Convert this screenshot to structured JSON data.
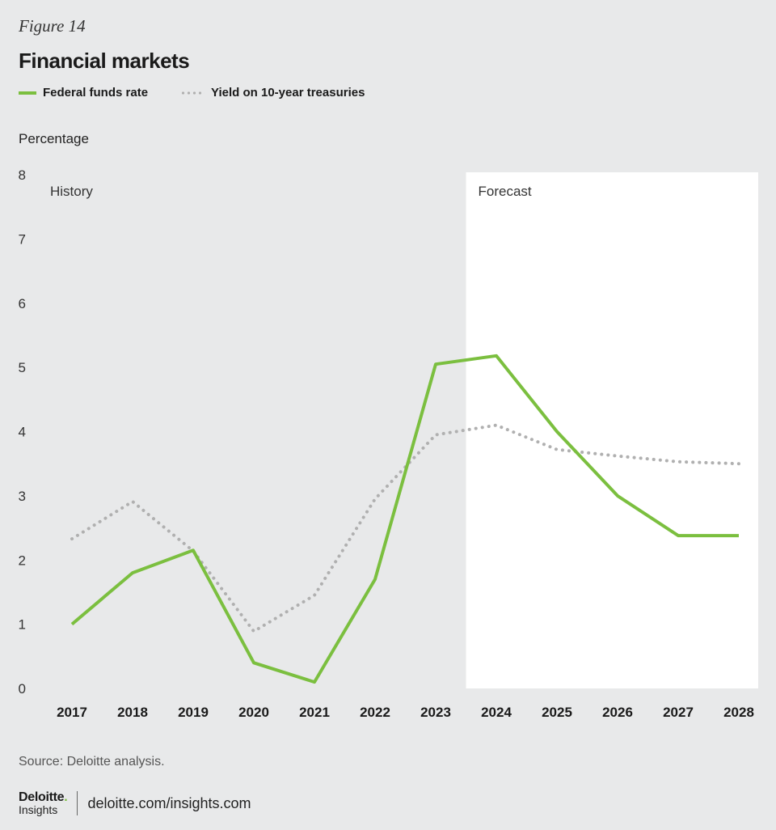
{
  "figure_label": "Figure 14",
  "title": "Financial markets",
  "source": "Source: Deloitte analysis.",
  "footer": {
    "brand": "Deloitte",
    "brand_dot": ".",
    "brand_sub": "Insights",
    "url": "deloitte.com/insights.com"
  },
  "colors": {
    "federal": "#7bbf3f",
    "treasury": "#b0b0b0",
    "forecast_bg": "#ffffff",
    "background": "#e8e9ea"
  },
  "chart_data": {
    "type": "line",
    "title": "Financial markets",
    "xlabel": "",
    "ylabel": "Percentage",
    "ylim": [
      0,
      8
    ],
    "yticks": [
      0,
      1,
      2,
      3,
      4,
      5,
      6,
      7,
      8
    ],
    "categories": [
      "2017",
      "2018",
      "2019",
      "2020",
      "2021",
      "2022",
      "2023",
      "2024",
      "2025",
      "2026",
      "2027",
      "2028"
    ],
    "regions": [
      {
        "label": "History",
        "from": "2017",
        "to": "2023"
      },
      {
        "label": "Forecast",
        "from": "2024",
        "to": "2028"
      }
    ],
    "series": [
      {
        "name": "Federal funds rate",
        "style": "solid",
        "values": [
          1.0,
          1.8,
          2.15,
          0.4,
          0.1,
          1.7,
          5.05,
          5.18,
          4.0,
          3.0,
          2.38,
          2.38
        ]
      },
      {
        "name": "Yield on 10-year treasuries",
        "style": "dotted",
        "values": [
          2.33,
          2.91,
          2.14,
          0.89,
          1.45,
          2.95,
          3.95,
          4.1,
          3.72,
          3.62,
          3.53,
          3.5
        ]
      }
    ]
  }
}
